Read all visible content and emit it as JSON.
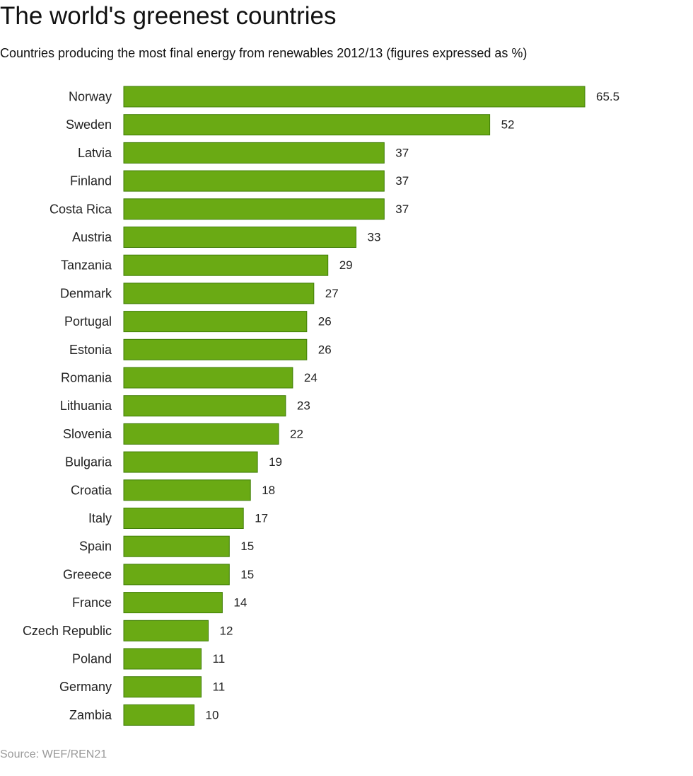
{
  "title": "The world's greenest countries",
  "subtitle": "Countries producing the most final energy from renewables 2012/13 (figures expressed as %)",
  "source": "Source: WEF/REN21",
  "colors": {
    "bar_fill": "#6aaa14",
    "bar_stroke": "#3f7d06",
    "label_text": "#222222",
    "source_text": "#9a9a9a"
  },
  "chart_data": {
    "type": "bar",
    "orientation": "horizontal",
    "title": "The world's greenest countries",
    "subtitle": "Countries producing the most final energy from renewables 2012/13 (figures expressed as %)",
    "xlabel": "",
    "ylabel": "",
    "xlim": [
      0,
      65.5
    ],
    "grid": false,
    "legend": "none",
    "categories": [
      "Norway",
      "Sweden",
      "Latvia",
      "Finland",
      "Costa Rica",
      "Austria",
      "Tanzania",
      "Denmark",
      "Portugal",
      "Estonia",
      "Romania",
      "Lithuania",
      "Slovenia",
      "Bulgaria",
      "Croatia",
      "Italy",
      "Spain",
      "Greeece",
      "France",
      "Czech Republic",
      "Poland",
      "Germany",
      "Zambia"
    ],
    "values": [
      65.5,
      52,
      37,
      37,
      37,
      33,
      29,
      27,
      26,
      26,
      24,
      23,
      22,
      19,
      18,
      17,
      15,
      15,
      14,
      12,
      11,
      11,
      10
    ],
    "value_labels": [
      "65.5",
      "52",
      "37",
      "37",
      "37",
      "33",
      "29",
      "27",
      "26",
      "26",
      "24",
      "23",
      "22",
      "19",
      "18",
      "17",
      "15",
      "15",
      "14",
      "12",
      "11",
      "11",
      "10"
    ]
  }
}
